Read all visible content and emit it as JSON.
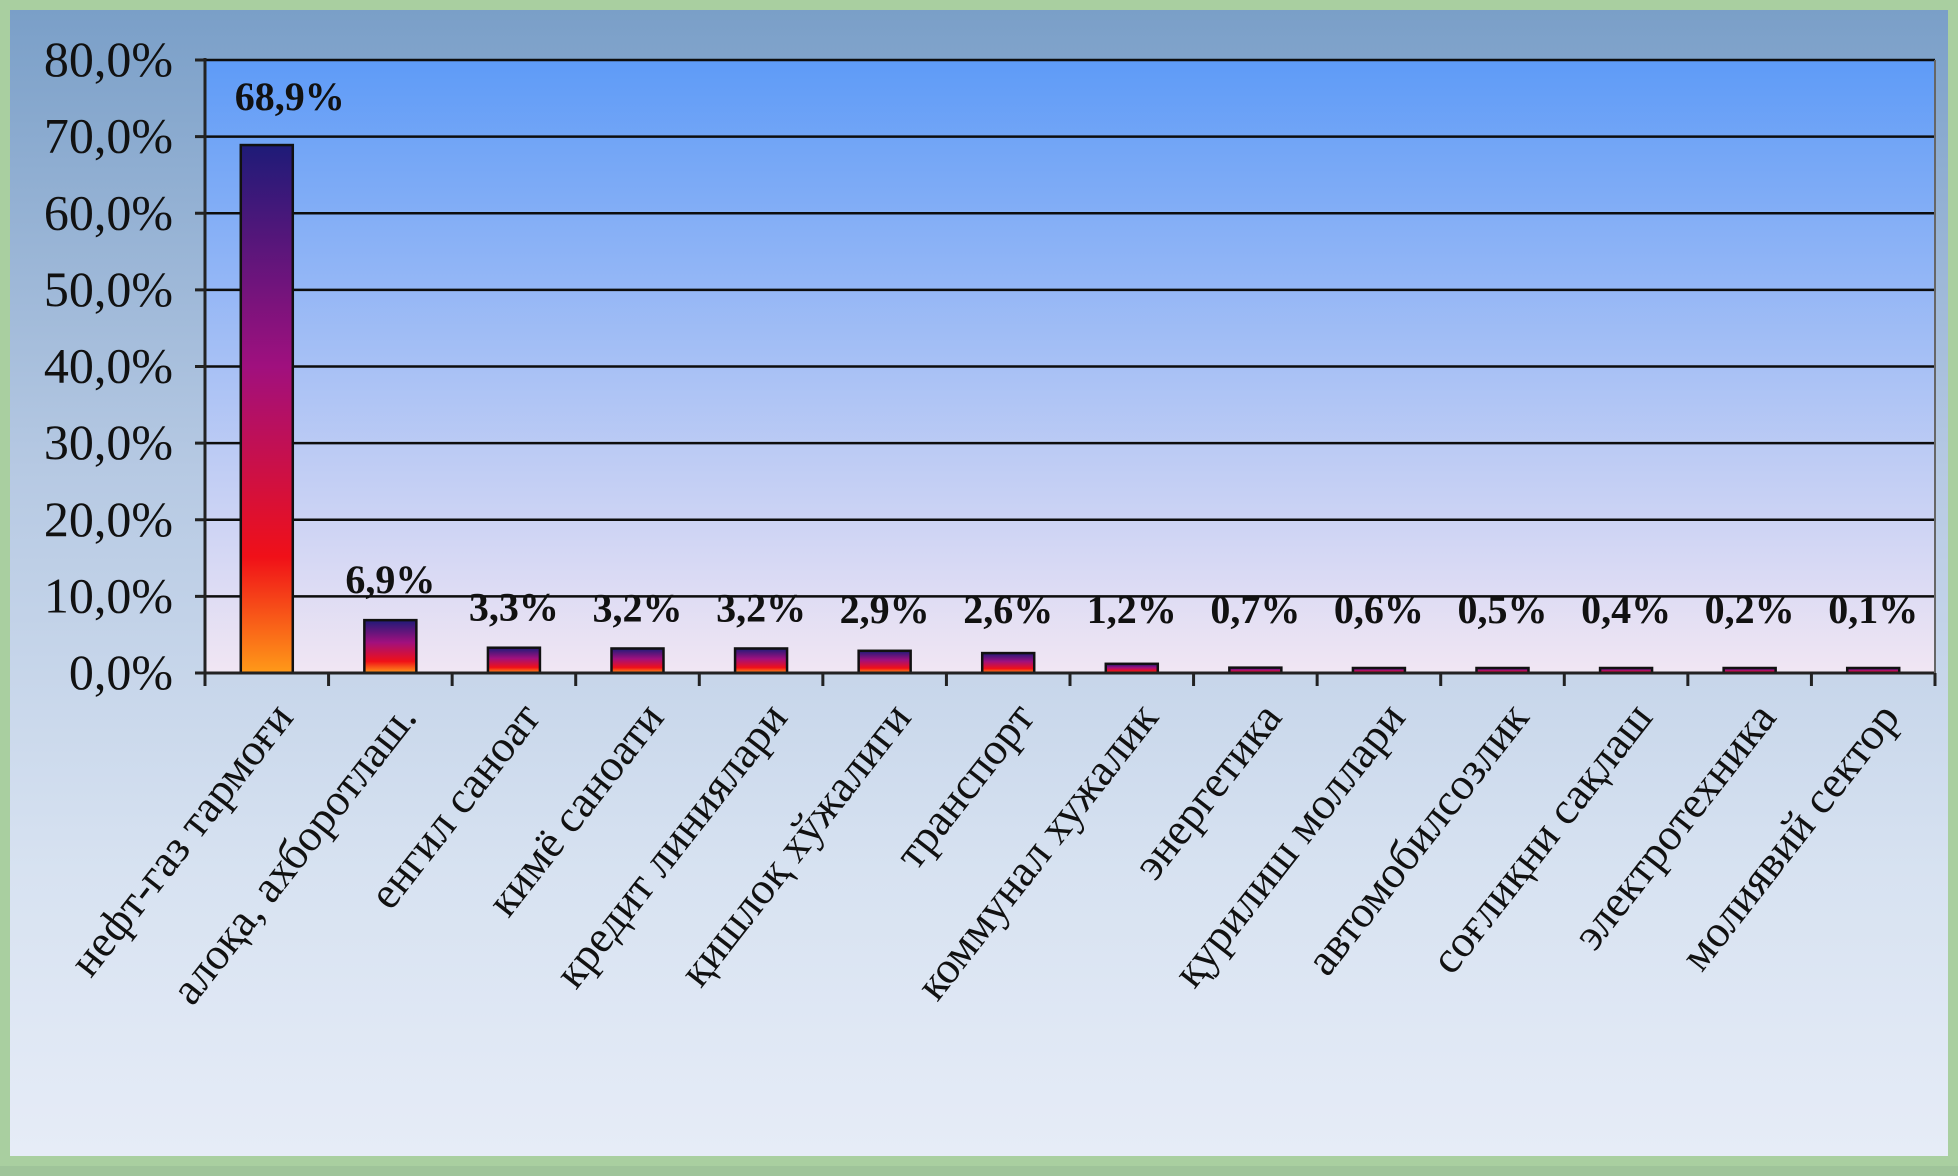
{
  "chart_data": {
    "type": "bar",
    "categories": [
      "нефт-газ тармоғи",
      "алоқа, ахборотлаш.",
      "енгил саноат",
      "кимё саноати",
      "кредит линиялари",
      "қишлоқ хўжалиги",
      "транспорт",
      "коммунал хужалик",
      "энергетика",
      "қурилиш моллари",
      "автомобилсозлик",
      "соғлиқни сақлаш",
      "электротехника",
      "молиявий сектор"
    ],
    "values": [
      68.9,
      6.9,
      3.3,
      3.2,
      3.2,
      2.9,
      2.6,
      1.2,
      0.7,
      0.6,
      0.5,
      0.4,
      0.2,
      0.1
    ],
    "data_labels": [
      "68,9%",
      "6,9%",
      "3,3%",
      "3,2%",
      "3,2%",
      "2,9%",
      "2,6%",
      "1,2%",
      "0,7%",
      "0,6%",
      "0,5%",
      "0,4%",
      "0,2%",
      "0,1%"
    ],
    "y_ticks": [
      0,
      10,
      20,
      30,
      40,
      50,
      60,
      70,
      80
    ],
    "y_tick_labels": [
      "0,0%",
      "10,0%",
      "20,0%",
      "30,0%",
      "40,0%",
      "50,0%",
      "60,0%",
      "70,0%",
      "80,0%"
    ],
    "ylim": [
      0,
      80
    ],
    "title": "",
    "xlabel": "",
    "ylabel": "",
    "grid": true,
    "legend": "none",
    "colors": {
      "plot_top": "#5e9bf7",
      "plot_bottom": "#f1e6f3",
      "bar_top": "#1e1b78",
      "bar_mid": "#a0107e",
      "bar_low": "#f01018",
      "bar_base": "#ff9a18",
      "gridline": "#0d0d0d"
    }
  }
}
